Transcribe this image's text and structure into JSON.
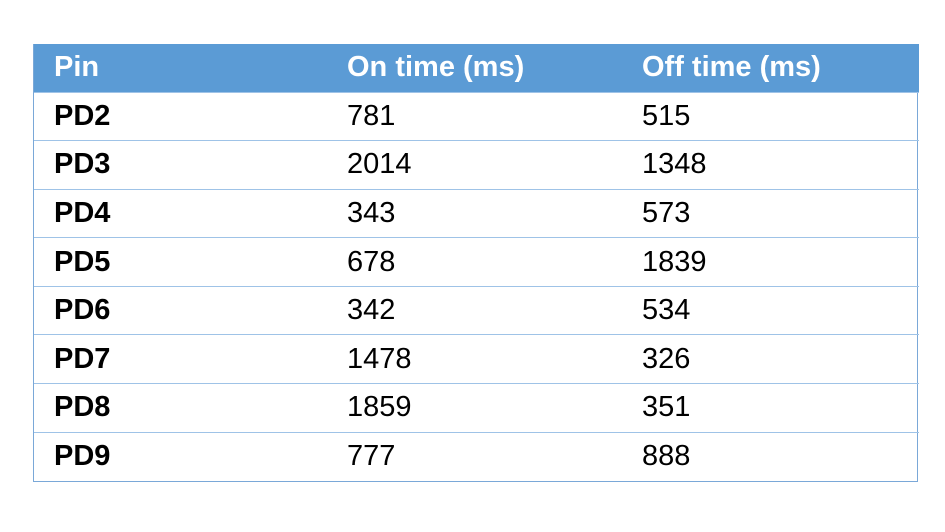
{
  "table": {
    "headers": [
      "Pin",
      "On time (ms)",
      "Off time (ms)"
    ],
    "rows": [
      [
        "PD2",
        "781",
        "515"
      ],
      [
        "PD3",
        "2014",
        "1348"
      ],
      [
        "PD4",
        "343",
        "573"
      ],
      [
        "PD5",
        "678",
        "1839"
      ],
      [
        "PD6",
        "342",
        "534"
      ],
      [
        "PD7",
        "1478",
        "326"
      ],
      [
        "PD8",
        "1859",
        "351"
      ],
      [
        "PD9",
        "777",
        "888"
      ]
    ]
  },
  "colors": {
    "header_bg": "#5b9bd5",
    "header_text": "#ffffff",
    "row_border": "#9fc3e7"
  }
}
